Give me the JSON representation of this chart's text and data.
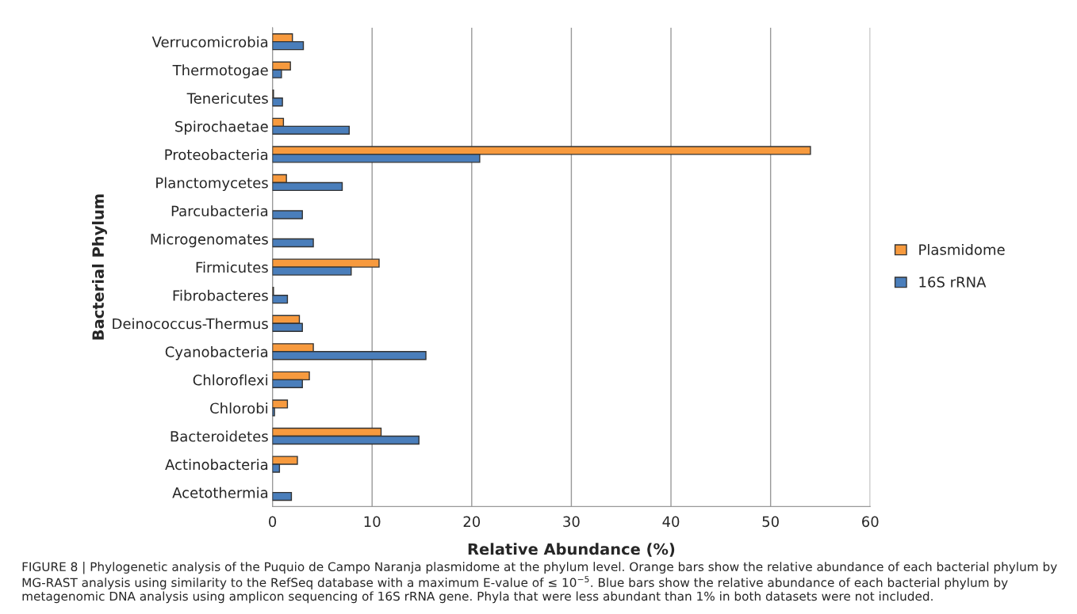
{
  "chart_data": {
    "type": "bar",
    "orientation": "horizontal",
    "xlabel": "Relative Abundance (%)",
    "ylabel": "Bacterial Phylum",
    "categories": [
      "Verrucomicrobia",
      "Thermotogae",
      "Tenericutes",
      "Spirochaetae",
      "Proteobacteria",
      "Planctomycetes",
      "Parcubacteria",
      "Microgenomates",
      "Firmicutes",
      "Fibrobacteres",
      "Deinococcus-Thermus",
      "Cyanobacteria",
      "Chloroflexi",
      "Chlorobi",
      "Bacteroidetes",
      "Actinobacteria",
      "Acetothermia"
    ],
    "series": [
      {
        "name": "Plasmidome",
        "color": "#f79a3e",
        "values": [
          2.0,
          1.8,
          0.1,
          1.1,
          54,
          1.4,
          null,
          null,
          10.7,
          0.1,
          2.7,
          4.1,
          3.7,
          1.5,
          10.9,
          2.5,
          null
        ]
      },
      {
        "name": "16S rRNA",
        "color": "#4a7ebb",
        "values": [
          3.1,
          0.9,
          1.0,
          7.7,
          20.8,
          7.0,
          3.0,
          4.1,
          7.9,
          1.5,
          3.0,
          15.4,
          3.0,
          0.2,
          14.7,
          0.7,
          1.9
        ]
      }
    ],
    "xlim": [
      0,
      60
    ],
    "xticks": [
      0,
      10,
      20,
      30,
      40,
      50,
      60
    ],
    "grid": "x",
    "legend": "right",
    "annotations": [
      "FIGURE 8 | Phylogenetic analysis of the Puquio de Campo Naranja plasmidome at the phylum level. Orange bars show the relative abundance of each bacterial phylum by MG-RAST analysis using similarity to the RefSeq database with a maximum E-value of ≤ 10$^{−5}$. Blue bars show the relative abundance of each bacterial phylum by metagenomic DNA analysis using amplicon sequencing of 16S rRNA gene. Phyla that were less abundant than 1% in both datasets were not included."
    ]
  }
}
